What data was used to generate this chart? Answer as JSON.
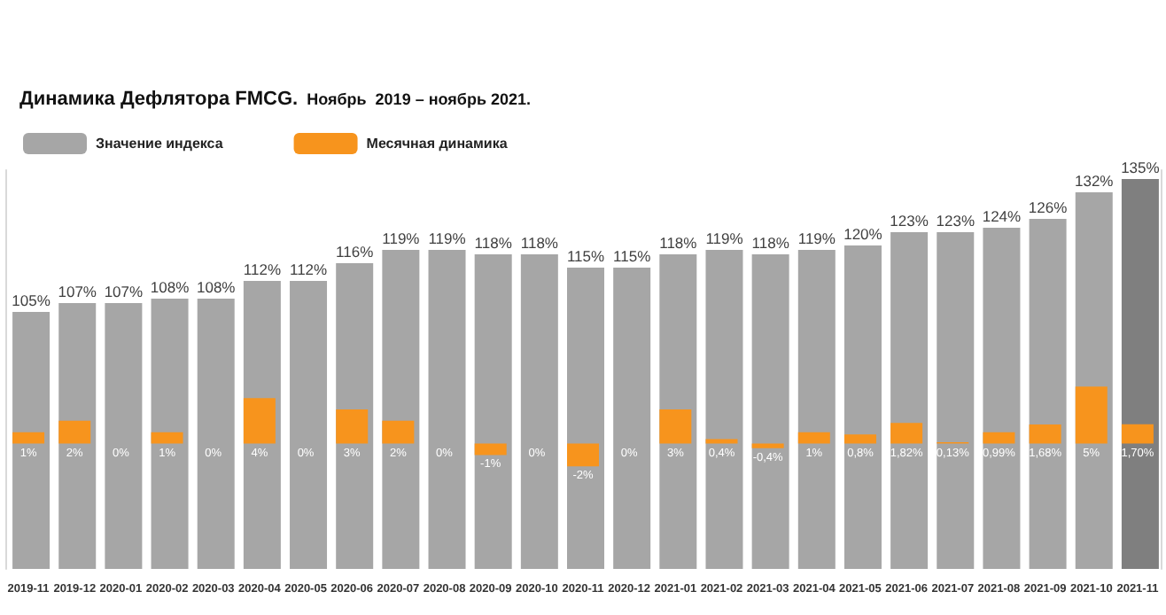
{
  "chart_data": {
    "type": "bar",
    "title": "Динамика Дефлятора FMCG.",
    "subtitle": "Ноябрь  2019 – ноябрь 2021.",
    "categories": [
      "2019-11",
      "2019-12",
      "2020-01",
      "2020-02",
      "2020-03",
      "2020-04",
      "2020-05",
      "2020-06",
      "2020-07",
      "2020-08",
      "2020-09",
      "2020-10",
      "2020-11",
      "2020-12",
      "2021-01",
      "2021-02",
      "2021-03",
      "2021-04",
      "2021-05",
      "2021-06",
      "2021-07",
      "2021-08",
      "2021-09",
      "2021-10",
      "2021-11"
    ],
    "series": [
      {
        "name": "Значение индекса",
        "color": "#a6a6a6",
        "colors": [
          "#a6a6a6",
          "#a6a6a6",
          "#a6a6a6",
          "#a6a6a6",
          "#a6a6a6",
          "#a6a6a6",
          "#a6a6a6",
          "#a6a6a6",
          "#a6a6a6",
          "#a6a6a6",
          "#a6a6a6",
          "#a6a6a6",
          "#a6a6a6",
          "#a6a6a6",
          "#a6a6a6",
          "#a6a6a6",
          "#a6a6a6",
          "#a6a6a6",
          "#a6a6a6",
          "#a6a6a6",
          "#a6a6a6",
          "#a6a6a6",
          "#a6a6a6",
          "#a6a6a6",
          "#7f7f7f"
        ],
        "values": [
          105,
          107,
          107,
          108,
          108,
          112,
          112,
          116,
          119,
          119,
          118,
          118,
          115,
          115,
          118,
          119,
          118,
          119,
          120,
          123,
          123,
          124,
          126,
          132,
          135
        ],
        "value_labels": [
          "105%",
          "107%",
          "107%",
          "108%",
          "108%",
          "112%",
          "112%",
          "116%",
          "119%",
          "119%",
          "118%",
          "118%",
          "115%",
          "115%",
          "118%",
          "119%",
          "118%",
          "119%",
          "120%",
          "123%",
          "123%",
          "124%",
          "126%",
          "132%",
          "135%"
        ]
      },
      {
        "name": "Месячная динамика",
        "color": "#f7941d",
        "axis": "y2",
        "values": [
          1,
          2,
          0,
          1,
          0,
          4,
          0,
          3,
          2,
          0,
          -1,
          0,
          -2,
          0,
          3,
          0.4,
          -0.4,
          1,
          0.8,
          1.82,
          0.13,
          0.99,
          1.68,
          5,
          1.7
        ],
        "value_labels": [
          "1%",
          "2%",
          "0%",
          "1%",
          "0%",
          "4%",
          "0%",
          "3%",
          "2%",
          "0%",
          "-1%",
          "0%",
          "-2%",
          "0%",
          "3%",
          "0,4%",
          "-0,4%",
          "1%",
          "0,8%",
          "1,82%",
          "0,13%",
          "0,99%",
          "1,68%",
          "5%",
          "1,70%"
        ]
      }
    ],
    "ylim": [
      47,
      137
    ],
    "y2lim": [
      -11,
      24
    ],
    "tick_labels": "x",
    "legend": "top left",
    "grid": false
  }
}
